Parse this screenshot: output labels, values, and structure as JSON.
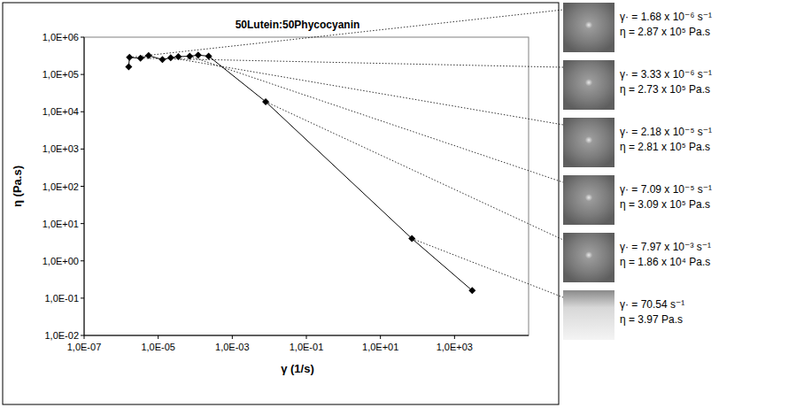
{
  "chart_data": {
    "type": "line",
    "title": "50Lutein:50Phycocyanin",
    "x_label": "γ (1/s)",
    "y_label": "η (Pa.s)",
    "log": true,
    "grid": false,
    "marker": "diamond",
    "line_style": "solid",
    "color": "#000000",
    "xlim": [
      1e-07,
      100000.0
    ],
    "ylim": [
      0.01,
      1000000
    ],
    "xticks": [
      {
        "value": 1e-07,
        "label": "1,0E-07"
      },
      {
        "value": 1e-05,
        "label": "1,0E-05"
      },
      {
        "value": 0.001,
        "label": "1,0E-03"
      },
      {
        "value": 0.1,
        "label": "1,0E-01"
      },
      {
        "value": 10,
        "label": "1,0E+01"
      },
      {
        "value": 1000,
        "label": "1,0E+03"
      }
    ],
    "yticks": [
      {
        "value": 0.01,
        "label": "1,0E-02"
      },
      {
        "value": 0.1,
        "label": "1,0E-01"
      },
      {
        "value": 1,
        "label": "1,0E+00"
      },
      {
        "value": 10,
        "label": "1,0E+01"
      },
      {
        "value": 100,
        "label": "1,0E+02"
      },
      {
        "value": 1000,
        "label": "1,0E+03"
      },
      {
        "value": 10000,
        "label": "1,0E+04"
      },
      {
        "value": 100000,
        "label": "1,0E+05"
      },
      {
        "value": 1000000,
        "label": "1,0E+06"
      }
    ],
    "x": [
      1.6e-06,
      1.68e-06,
      3.33e-06,
      5.5e-06,
      1.3e-05,
      2.18e-05,
      3.5e-05,
      7.09e-05,
      0.00012,
      0.00023,
      0.00797,
      70.54,
      3000
    ],
    "values": [
      160000,
      287000,
      273000,
      320000,
      250000,
      281000,
      300000,
      309000,
      330000,
      310000,
      18600,
      3.97,
      0.16
    ],
    "annotations": [
      {
        "lines": [
          "γ· = 1.68 x 10⁻⁶ s⁻¹",
          "η = 2.87 x 10⁵ Pa.s"
        ],
        "x": 1.68e-06,
        "y": 287000
      },
      {
        "lines": [
          "γ· = 3.33 x 10⁻⁶ s⁻¹",
          "η = 2.73 x 10⁵ Pa.s"
        ],
        "x": 3.33e-06,
        "y": 273000
      },
      {
        "lines": [
          "γ· = 2.18 x 10⁻⁵ s⁻¹",
          "η = 2.81 x 10⁵ Pa.s"
        ],
        "x": 2.18e-05,
        "y": 281000
      },
      {
        "lines": [
          "γ· = 7.09 x 10⁻⁵ s⁻¹",
          "η = 3.09 x 10⁵ Pa.s"
        ],
        "x": 7.09e-05,
        "y": 309000
      },
      {
        "lines": [
          "γ· = 7.97 x 10⁻³ s⁻¹",
          "η = 1.86 x 10⁴ Pa.s"
        ],
        "x": 0.00797,
        "y": 18600
      },
      {
        "lines": [
          "γ· = 70.54 s⁻¹",
          "η = 3.97 Pa.s"
        ],
        "x": 70.54,
        "y": 3.97
      }
    ]
  }
}
